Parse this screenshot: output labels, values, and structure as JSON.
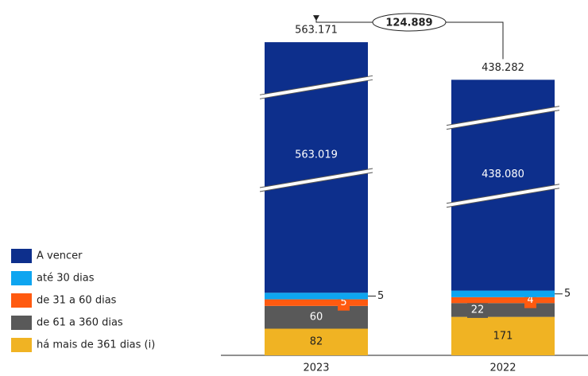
{
  "chart_data": {
    "type": "stacked-bar",
    "categories": [
      "2023",
      "2022"
    ],
    "series": [
      {
        "name": "há mais de 361 dias (i)",
        "color": "#f0b323",
        "values": [
          82,
          171
        ]
      },
      {
        "name": "de 61 a 360 dias",
        "color": "#595959",
        "values": [
          60,
          22
        ]
      },
      {
        "name": "de 31 a 60 dias",
        "color": "#ff5a10",
        "values": [
          5,
          4
        ]
      },
      {
        "name": "até 30 dias",
        "color": "#0ea5f0",
        "values": [
          5,
          5
        ]
      },
      {
        "name": "A vencer",
        "color": "#0d2f8c",
        "values": [
          563019,
          438080
        ],
        "value_labels": [
          "563.019",
          "438.080"
        ]
      }
    ],
    "totals": {
      "values": [
        563171,
        438282
      ],
      "value_labels": [
        "563.171",
        "438.282"
      ]
    },
    "difference": {
      "value": 124889,
      "label": "124.889"
    }
  }
}
